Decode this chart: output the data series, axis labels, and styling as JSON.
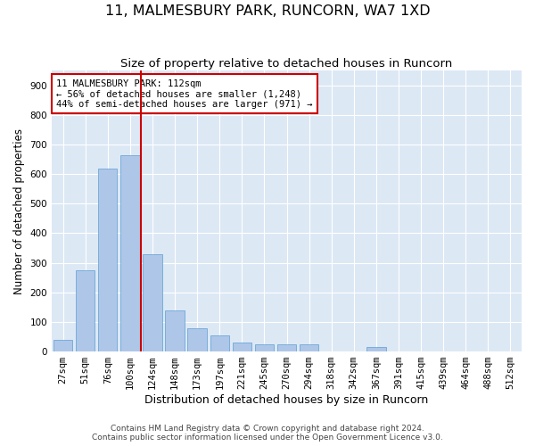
{
  "title1": "11, MALMESBURY PARK, RUNCORN, WA7 1XD",
  "title2": "Size of property relative to detached houses in Runcorn",
  "xlabel": "Distribution of detached houses by size in Runcorn",
  "ylabel": "Number of detached properties",
  "categories": [
    "27sqm",
    "51sqm",
    "76sqm",
    "100sqm",
    "124sqm",
    "148sqm",
    "173sqm",
    "197sqm",
    "221sqm",
    "245sqm",
    "270sqm",
    "294sqm",
    "318sqm",
    "342sqm",
    "367sqm",
    "391sqm",
    "415sqm",
    "439sqm",
    "464sqm",
    "488sqm",
    "512sqm"
  ],
  "values": [
    40,
    275,
    620,
    665,
    330,
    140,
    80,
    55,
    30,
    25,
    25,
    25,
    0,
    0,
    15,
    0,
    0,
    0,
    0,
    0,
    0
  ],
  "bar_color": "#aec6e8",
  "bar_edge_color": "#5a9fd4",
  "marker_line_color": "#cc0000",
  "annotation_line1": "11 MALMESBURY PARK: 112sqm",
  "annotation_line2": "← 56% of detached houses are smaller (1,248)",
  "annotation_line3": "44% of semi-detached houses are larger (971) →",
  "annotation_box_color": "#ffffff",
  "annotation_box_edge_color": "#cc0000",
  "ylim": [
    0,
    950
  ],
  "yticks": [
    0,
    100,
    200,
    300,
    400,
    500,
    600,
    700,
    800,
    900
  ],
  "background_color": "#dde8f5",
  "grid_color": "#ffffff",
  "footer_line1": "Contains HM Land Registry data © Crown copyright and database right 2024.",
  "footer_line2": "Contains public sector information licensed under the Open Government Licence v3.0.",
  "title1_fontsize": 11.5,
  "title2_fontsize": 9.5,
  "xlabel_fontsize": 9,
  "ylabel_fontsize": 8.5,
  "tick_fontsize": 7.5,
  "annotation_fontsize": 7.5,
  "footer_fontsize": 6.5
}
